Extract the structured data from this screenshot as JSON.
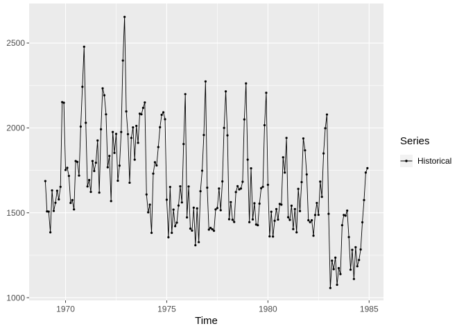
{
  "chart_data": {
    "type": "line",
    "title": "",
    "xlabel": "Time",
    "ylabel": "",
    "x_ticks": [
      1970,
      1975,
      1980,
      1985
    ],
    "x_minor_gridlines": [
      1972.5,
      1977.5,
      1982.5
    ],
    "y_ticks": [
      1000,
      1500,
      2000,
      2500
    ],
    "y_minor_gridlines": [
      1250,
      1750,
      2250
    ],
    "xlim": [
      1968.2,
      1985.71
    ],
    "ylim": [
      984,
      2733
    ],
    "grid": true,
    "marker": "point",
    "legend": {
      "title": "Series",
      "position": "right",
      "entries": [
        {
          "label": "Historical",
          "marker": "point-line",
          "color": "#000000"
        }
      ]
    },
    "colors": {
      "figure_bg": "#FFFFFF",
      "panel_bg": "#EBEBEB",
      "gridline": "#FFFFFF",
      "series": "#000000",
      "axis_text": "#4D4D4D",
      "tick_mark": "#333333",
      "legend_key_bg": "#F2F2F2"
    },
    "series": [
      {
        "name": "Historical",
        "start_year": 1969,
        "frequency": 12,
        "values": [
          1687,
          1508,
          1507,
          1385,
          1632,
          1511,
          1559,
          1630,
          1579,
          1653,
          2152,
          2148,
          1752,
          1765,
          1717,
          1558,
          1575,
          1520,
          1805,
          1800,
          1719,
          2008,
          2242,
          2478,
          2030,
          1655,
          1693,
          1623,
          1805,
          1746,
          1795,
          1926,
          1619,
          1992,
          2233,
          2192,
          2080,
          1768,
          1835,
          1569,
          1976,
          1853,
          1965,
          1689,
          1778,
          1976,
          2397,
          2654,
          2097,
          1963,
          1677,
          1941,
          2003,
          1813,
          2012,
          1912,
          2084,
          2080,
          2118,
          2150,
          1608,
          1503,
          1548,
          1382,
          1731,
          1798,
          1779,
          1887,
          2004,
          2077,
          2092,
          2051,
          1577,
          1356,
          1652,
          1382,
          1519,
          1421,
          1442,
          1543,
          1656,
          1561,
          1905,
          2199,
          1473,
          1655,
          1407,
          1395,
          1530,
          1309,
          1526,
          1327,
          1627,
          1748,
          1958,
          2274,
          1648,
          1401,
          1411,
          1403,
          1394,
          1520,
          1528,
          1643,
          1515,
          1685,
          2000,
          2215,
          1956,
          1462,
          1563,
          1459,
          1446,
          1622,
          1657,
          1638,
          1643,
          1683,
          2050,
          2262,
          1813,
          1445,
          1762,
          1461,
          1556,
          1431,
          1427,
          1554,
          1645,
          1653,
          2016,
          2207,
          1665,
          1361,
          1506,
          1360,
          1453,
          1522,
          1460,
          1552,
          1548,
          1827,
          1737,
          1941,
          1474,
          1458,
          1542,
          1404,
          1522,
          1385,
          1641,
          1510,
          1681,
          1938,
          1868,
          1726,
          1456,
          1445,
          1456,
          1365,
          1487,
          1558,
          1488,
          1684,
          1594,
          1850,
          1998,
          2079,
          1494,
          1057,
          1218,
          1168,
          1236,
          1076,
          1174,
          1139,
          1427,
          1487,
          1483,
          1513,
          1357,
          1165,
          1282,
          1110,
          1297,
          1185,
          1222,
          1284,
          1444,
          1575,
          1737,
          1763
        ]
      }
    ]
  }
}
